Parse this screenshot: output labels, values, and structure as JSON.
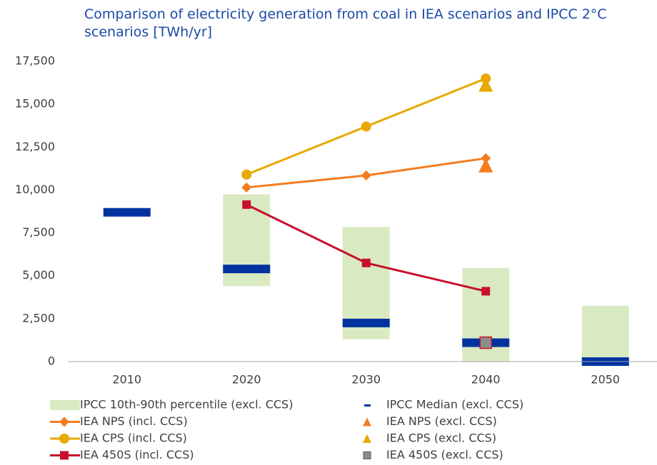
{
  "chart_data": {
    "type": "line",
    "title": "Comparison of electricity generation from coal in IEA scenarios and IPCC 2°C scenarios [TWh/yr]",
    "categories": [
      "2010",
      "2020",
      "2030",
      "2040",
      "2050"
    ],
    "ylim": [
      0,
      17500
    ],
    "yticks": [
      0,
      {
        "value": 2500,
        "label": "2,500"
      },
      {
        "value": 5000,
        "label": "5,000"
      },
      {
        "value": 7500,
        "label": "7,500"
      },
      {
        "value": 10000,
        "label": "10,000"
      },
      {
        "value": 12500,
        "label": "12,500"
      },
      {
        "value": 15000,
        "label": "15,000"
      },
      {
        "value": 17500,
        "label": "17,500"
      }
    ],
    "grid": false,
    "series": [
      {
        "name": "IPCC 10th-90th percentile (excl. CCS)",
        "style": "range",
        "color": "#d9eac2",
        "low": [
          null,
          4400,
          1300,
          0,
          0
        ],
        "high": [
          null,
          9750,
          7850,
          5450,
          3250
        ]
      },
      {
        "name": "IPCC Median (excl. CCS)",
        "style": "bar",
        "color": "#0033a0",
        "values": [
          8700,
          5400,
          2250,
          1100,
          0
        ]
      },
      {
        "name": "IEA NPS (incl. CCS)",
        "style": "line",
        "marker": "diamond",
        "color": "#f57c1f",
        "values": [
          null,
          10150,
          10850,
          11850,
          null
        ]
      },
      {
        "name": "IEA NPS (excl. CCS)",
        "style": "triangle",
        "color": "#f57c1f",
        "values": [
          null,
          null,
          null,
          11400,
          null
        ]
      },
      {
        "name": "IEA CPS (incl. CCS)",
        "style": "line",
        "marker": "circle",
        "color": "#e8a900",
        "values": [
          null,
          10900,
          13700,
          16500,
          null
        ]
      },
      {
        "name": "IEA CPS (excl. CCS)",
        "style": "triangle",
        "color": "#e8a900",
        "values": [
          null,
          null,
          null,
          16100,
          null
        ]
      },
      {
        "name": "IEA 450S (incl. CCS)",
        "style": "line",
        "marker": "square",
        "color": "#c8102e",
        "values": [
          null,
          9150,
          5750,
          4100,
          null
        ]
      },
      {
        "name": "IEA 450S (excl. CCS)",
        "style": "square",
        "color": "#8c8c8c",
        "values": [
          null,
          null,
          null,
          1100,
          null
        ]
      }
    ]
  }
}
